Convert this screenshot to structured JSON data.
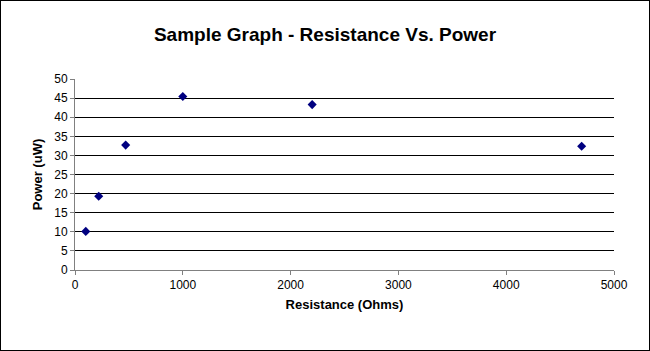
{
  "chart_data": {
    "type": "scatter",
    "title": "Sample Graph - Resistance Vs. Power",
    "x_label": "Resistance (Ohms)",
    "y_label": "Power (uW)",
    "x": [
      100,
      220,
      470,
      1000,
      2200,
      4700
    ],
    "values": [
      10.1,
      19.3,
      32.7,
      45.4,
      43.3,
      32.4
    ],
    "color": "#000080",
    "marker": "diamond",
    "xlim": [
      0,
      5000
    ],
    "xticks": [
      0,
      1000,
      2000,
      3000,
      4000,
      5000
    ],
    "ylim": [
      0,
      50
    ],
    "yticks": [
      0,
      5,
      10,
      15,
      20,
      25,
      30,
      35,
      40,
      45,
      50
    ],
    "grid": "y"
  }
}
